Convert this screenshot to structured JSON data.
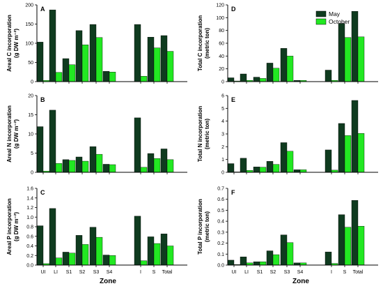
{
  "colors": {
    "may": "#0f3b1f",
    "october": "#22e822",
    "axis": "#000000"
  },
  "legend": {
    "may": "May",
    "october": "October"
  },
  "x_axis_label": "Zone",
  "categories": [
    "UI",
    "LI",
    "S1",
    "S2",
    "S3",
    "S4",
    "I",
    "S",
    "Total"
  ],
  "chart_data": [
    {
      "type": "bar",
      "panel": "A",
      "ylabel": [
        "Areal C incorporation",
        "(g DW m⁻²)"
      ],
      "ylim": [
        0,
        200
      ],
      "yticks": [
        "0",
        "50",
        "100",
        "150",
        "200"
      ],
      "ytick_values": [
        0,
        50,
        100,
        150,
        200
      ],
      "categories": [
        "UI",
        "LI",
        "S1",
        "S2",
        "S3",
        "S4",
        "I",
        "S",
        "Total"
      ],
      "series": [
        {
          "name": "May",
          "values": [
            103,
            187,
            60,
            133,
            149,
            27,
            149,
            116,
            120
          ]
        },
        {
          "name": "October",
          "values": [
            3,
            24,
            44,
            96,
            115,
            25,
            14,
            88,
            79
          ]
        }
      ]
    },
    {
      "type": "bar",
      "panel": "B",
      "ylabel": [
        "Areal N incorporation",
        "(g DW m⁻²)"
      ],
      "ylim": [
        0,
        20
      ],
      "yticks": [
        "0",
        "5",
        "10",
        "15",
        "20"
      ],
      "ytick_values": [
        0,
        5,
        10,
        15,
        20
      ],
      "categories": [
        "UI",
        "LI",
        "S1",
        "S2",
        "S3",
        "S4",
        "I",
        "S",
        "Total"
      ],
      "series": [
        {
          "name": "May",
          "values": [
            11.9,
            16.2,
            3.3,
            4.0,
            6.7,
            2.1,
            14.2,
            4.9,
            6.1
          ]
        },
        {
          "name": "October",
          "values": [
            0.3,
            2.3,
            3.1,
            2.9,
            4.7,
            2.0,
            1.3,
            3.6,
            3.3
          ]
        }
      ]
    },
    {
      "type": "bar",
      "panel": "C",
      "ylabel": [
        "Areal P incorporation",
        "(g DW m⁻²)"
      ],
      "ylim": [
        0,
        1.6
      ],
      "yticks": [
        "0.0",
        "0.2",
        "0.4",
        "0.6",
        "0.8",
        "1.0",
        "1.2",
        "1.4",
        "1.6"
      ],
      "ytick_values": [
        0,
        0.2,
        0.4,
        0.6,
        0.8,
        1.0,
        1.2,
        1.4,
        1.6
      ],
      "categories": [
        "UI",
        "LI",
        "S1",
        "S2",
        "S3",
        "S4",
        "I",
        "S",
        "Total"
      ],
      "series": [
        {
          "name": "May",
          "values": [
            0.82,
            1.18,
            0.27,
            0.62,
            0.79,
            0.21,
            1.02,
            0.59,
            0.65
          ]
        },
        {
          "name": "October",
          "values": [
            0.03,
            0.15,
            0.25,
            0.43,
            0.58,
            0.2,
            0.09,
            0.45,
            0.4
          ]
        }
      ]
    },
    {
      "type": "bar",
      "panel": "D",
      "ylabel": [
        "Total C incorporation",
        "(metric ton)"
      ],
      "ylim": [
        0,
        120
      ],
      "yticks": [
        "0",
        "20",
        "40",
        "60",
        "80",
        "100",
        "120"
      ],
      "ytick_values": [
        0,
        20,
        40,
        60,
        80,
        100,
        120
      ],
      "categories": [
        "UI",
        "LI",
        "S1",
        "S2",
        "S3",
        "S4",
        "I",
        "S",
        "Total"
      ],
      "series": [
        {
          "name": "May",
          "values": [
            6,
            12,
            7,
            29,
            52,
            2,
            18,
            91,
            110
          ]
        },
        {
          "name": "October",
          "values": [
            1,
            2,
            5,
            21,
            40,
            2,
            2,
            69,
            70
          ]
        }
      ]
    },
    {
      "type": "bar",
      "panel": "E",
      "ylabel": [
        "Total N incorporation",
        "(metric ton)"
      ],
      "ylim": [
        0,
        6
      ],
      "yticks": [
        "0",
        "1",
        "2",
        "3",
        "4",
        "5",
        "6"
      ],
      "ytick_values": [
        0,
        1,
        2,
        3,
        4,
        5,
        6
      ],
      "categories": [
        "UI",
        "LI",
        "S1",
        "S2",
        "S3",
        "S4",
        "I",
        "S",
        "Total"
      ],
      "series": [
        {
          "name": "May",
          "values": [
            0.68,
            1.1,
            0.42,
            0.86,
            2.32,
            0.2,
            1.75,
            3.82,
            5.62
          ]
        },
        {
          "name": "October",
          "values": [
            0.03,
            0.15,
            0.4,
            0.62,
            1.65,
            0.2,
            0.17,
            2.87,
            3.04
          ]
        }
      ]
    },
    {
      "type": "bar",
      "panel": "F",
      "ylabel": [
        "Total P incorporation",
        "(metric ton)"
      ],
      "ylim": [
        0,
        0.7
      ],
      "yticks": [
        "0.0",
        "0.1",
        "0.2",
        "0.3",
        "0.4",
        "0.5",
        "0.6",
        "0.7"
      ],
      "ytick_values": [
        0,
        0.1,
        0.2,
        0.3,
        0.4,
        0.5,
        0.6,
        0.7
      ],
      "categories": [
        "UI",
        "LI",
        "S1",
        "S2",
        "S3",
        "S4",
        "I",
        "S",
        "Total"
      ],
      "series": [
        {
          "name": "May",
          "values": [
            0.045,
            0.075,
            0.03,
            0.13,
            0.275,
            0.02,
            0.12,
            0.46,
            0.59
          ]
        },
        {
          "name": "October",
          "values": [
            0.005,
            0.02,
            0.03,
            0.095,
            0.205,
            0.02,
            0.015,
            0.345,
            0.355
          ]
        }
      ]
    }
  ]
}
